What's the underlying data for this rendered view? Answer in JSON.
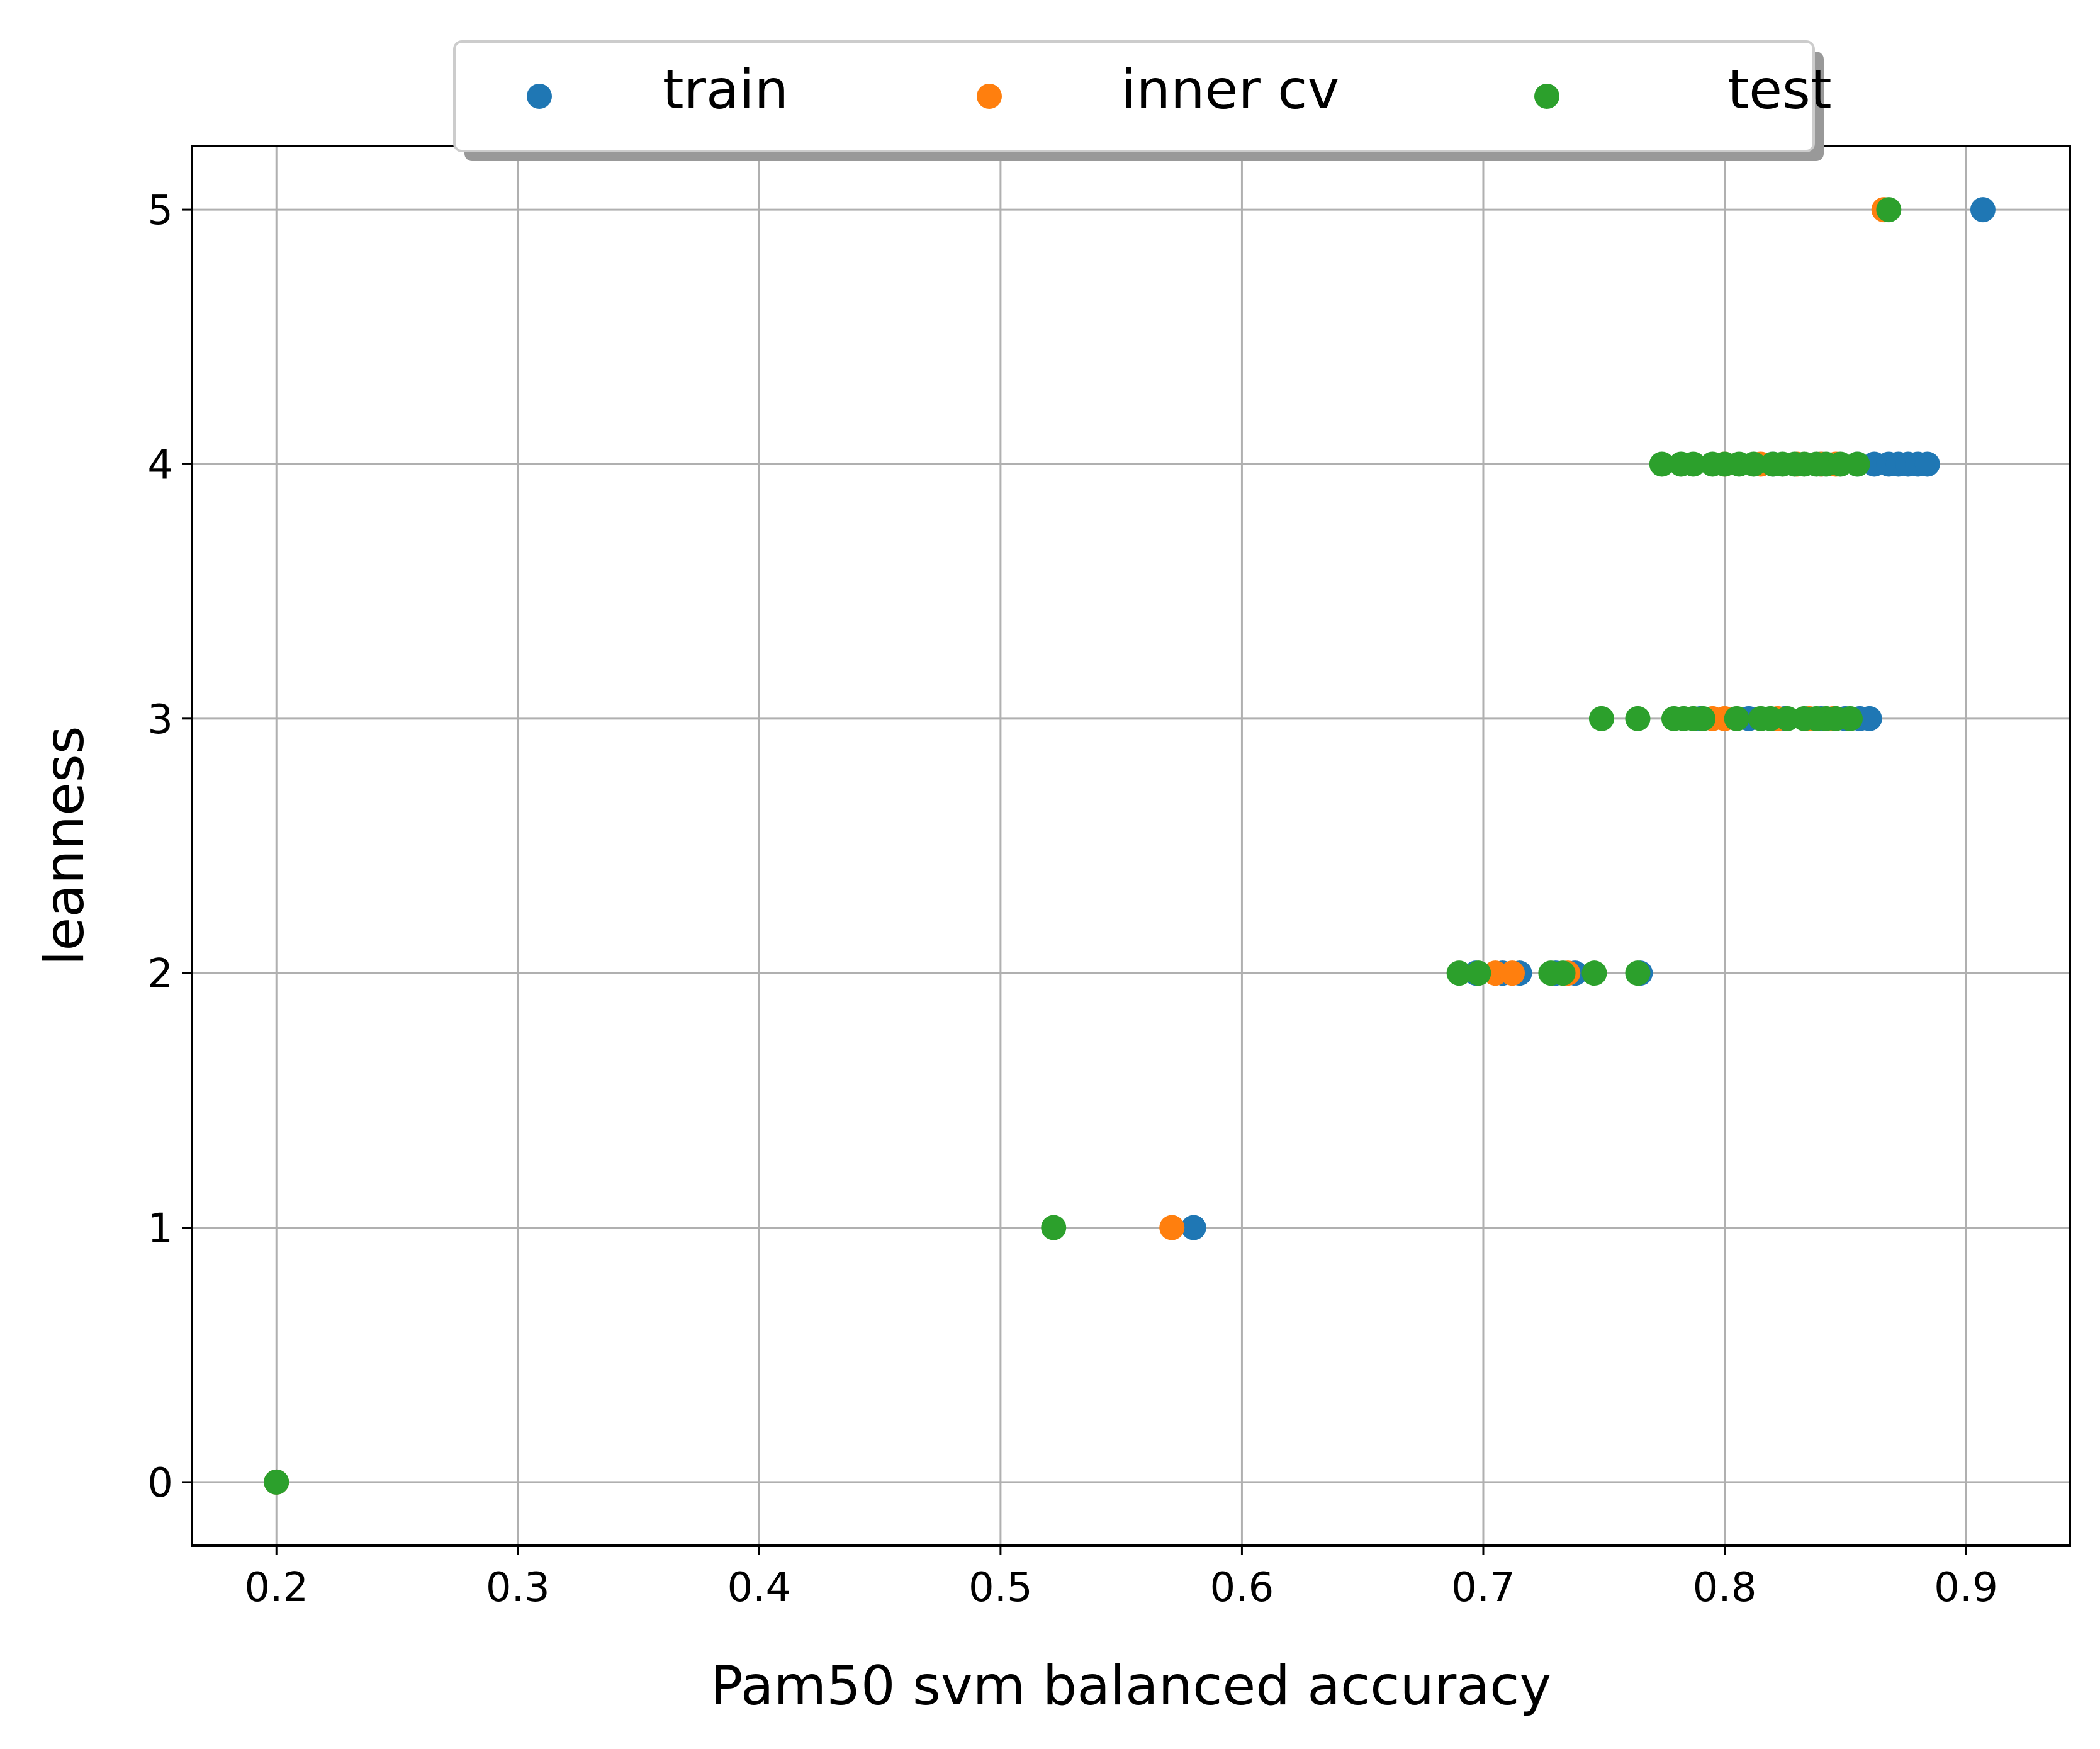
{
  "chart_data": {
    "type": "scatter",
    "title": "",
    "xlabel": "Pam50 svm balanced accuracy",
    "ylabel": "leanness",
    "xlim": [
      0.165,
      0.943
    ],
    "ylim": [
      -0.25,
      5.25
    ],
    "xticks": [
      0.2,
      0.3,
      0.4,
      0.5,
      0.6,
      0.7,
      0.8,
      0.9
    ],
    "xtick_labels": [
      "0.2",
      "0.3",
      "0.4",
      "0.5",
      "0.6",
      "0.7",
      "0.8",
      "0.9"
    ],
    "yticks": [
      0,
      1,
      2,
      3,
      4,
      5
    ],
    "ytick_labels": [
      "0",
      "1",
      "2",
      "3",
      "4",
      "5"
    ],
    "grid": true,
    "legend": {
      "placement": "top-center",
      "columns": 3
    },
    "series": [
      {
        "name": "train",
        "color": "#1f77b4",
        "points": [
          {
            "x": 0.2,
            "y": 0
          },
          {
            "x": 0.58,
            "y": 1
          },
          {
            "x": 0.697,
            "y": 2
          },
          {
            "x": 0.708,
            "y": 2
          },
          {
            "x": 0.715,
            "y": 2
          },
          {
            "x": 0.73,
            "y": 2
          },
          {
            "x": 0.738,
            "y": 2
          },
          {
            "x": 0.765,
            "y": 2
          },
          {
            "x": 0.79,
            "y": 3
          },
          {
            "x": 0.81,
            "y": 3
          },
          {
            "x": 0.825,
            "y": 3
          },
          {
            "x": 0.84,
            "y": 3
          },
          {
            "x": 0.85,
            "y": 3
          },
          {
            "x": 0.856,
            "y": 3
          },
          {
            "x": 0.86,
            "y": 3
          },
          {
            "x": 0.82,
            "y": 4
          },
          {
            "x": 0.84,
            "y": 4
          },
          {
            "x": 0.855,
            "y": 4
          },
          {
            "x": 0.862,
            "y": 4
          },
          {
            "x": 0.868,
            "y": 4
          },
          {
            "x": 0.872,
            "y": 4
          },
          {
            "x": 0.876,
            "y": 4
          },
          {
            "x": 0.88,
            "y": 4
          },
          {
            "x": 0.884,
            "y": 4
          },
          {
            "x": 0.907,
            "y": 5
          }
        ]
      },
      {
        "name": "inner cv",
        "color": "#ff7f0e",
        "points": [
          {
            "x": 0.2,
            "y": 0
          },
          {
            "x": 0.571,
            "y": 1
          },
          {
            "x": 0.705,
            "y": 2
          },
          {
            "x": 0.712,
            "y": 2
          },
          {
            "x": 0.735,
            "y": 2
          },
          {
            "x": 0.795,
            "y": 3
          },
          {
            "x": 0.8,
            "y": 3
          },
          {
            "x": 0.822,
            "y": 3
          },
          {
            "x": 0.835,
            "y": 3
          },
          {
            "x": 0.845,
            "y": 3
          },
          {
            "x": 0.8,
            "y": 4
          },
          {
            "x": 0.815,
            "y": 4
          },
          {
            "x": 0.83,
            "y": 4
          },
          {
            "x": 0.84,
            "y": 4
          },
          {
            "x": 0.846,
            "y": 4
          },
          {
            "x": 0.866,
            "y": 5
          }
        ]
      },
      {
        "name": "test",
        "color": "#2ca02c",
        "points": [
          {
            "x": 0.2,
            "y": 0
          },
          {
            "x": 0.522,
            "y": 1
          },
          {
            "x": 0.69,
            "y": 2
          },
          {
            "x": 0.698,
            "y": 2
          },
          {
            "x": 0.728,
            "y": 2
          },
          {
            "x": 0.733,
            "y": 2
          },
          {
            "x": 0.746,
            "y": 2
          },
          {
            "x": 0.764,
            "y": 2
          },
          {
            "x": 0.749,
            "y": 3
          },
          {
            "x": 0.764,
            "y": 3
          },
          {
            "x": 0.779,
            "y": 3
          },
          {
            "x": 0.783,
            "y": 3
          },
          {
            "x": 0.787,
            "y": 3
          },
          {
            "x": 0.791,
            "y": 3
          },
          {
            "x": 0.805,
            "y": 3
          },
          {
            "x": 0.815,
            "y": 3
          },
          {
            "x": 0.819,
            "y": 3
          },
          {
            "x": 0.826,
            "y": 3
          },
          {
            "x": 0.833,
            "y": 3
          },
          {
            "x": 0.838,
            "y": 3
          },
          {
            "x": 0.842,
            "y": 3
          },
          {
            "x": 0.846,
            "y": 3
          },
          {
            "x": 0.852,
            "y": 3
          },
          {
            "x": 0.774,
            "y": 4
          },
          {
            "x": 0.782,
            "y": 4
          },
          {
            "x": 0.787,
            "y": 4
          },
          {
            "x": 0.795,
            "y": 4
          },
          {
            "x": 0.8,
            "y": 4
          },
          {
            "x": 0.806,
            "y": 4
          },
          {
            "x": 0.812,
            "y": 4
          },
          {
            "x": 0.82,
            "y": 4
          },
          {
            "x": 0.824,
            "y": 4
          },
          {
            "x": 0.829,
            "y": 4
          },
          {
            "x": 0.833,
            "y": 4
          },
          {
            "x": 0.838,
            "y": 4
          },
          {
            "x": 0.842,
            "y": 4
          },
          {
            "x": 0.848,
            "y": 4
          },
          {
            "x": 0.855,
            "y": 4
          },
          {
            "x": 0.868,
            "y": 5
          }
        ]
      }
    ]
  }
}
